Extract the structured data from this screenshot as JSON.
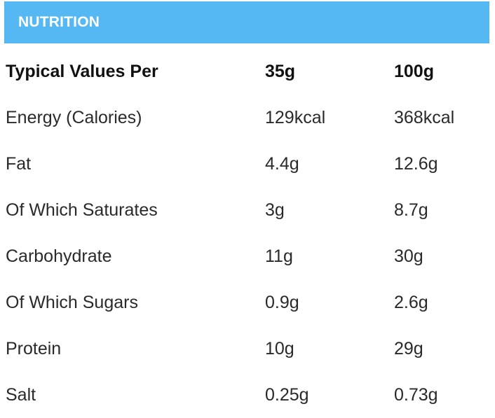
{
  "header": {
    "title": "NUTRITION"
  },
  "table": {
    "columns": [
      "Typical Values Per",
      "35g",
      "100g"
    ],
    "rows": [
      [
        "Energy (Calories)",
        "129kcal",
        "368kcal"
      ],
      [
        "Fat",
        "4.4g",
        "12.6g"
      ],
      [
        "Of Which Saturates",
        "3g",
        "8.7g"
      ],
      [
        "Carbohydrate",
        "11g",
        "30g"
      ],
      [
        "Of Which Sugars",
        "0.9g",
        "2.6g"
      ],
      [
        "Protein",
        "10g",
        "29g"
      ],
      [
        "Salt",
        "0.25g",
        "0.73g"
      ]
    ]
  },
  "colors": {
    "header_background": "#55b8f2",
    "header_text": "#ffffff",
    "body_text": "#2a2a2a"
  }
}
